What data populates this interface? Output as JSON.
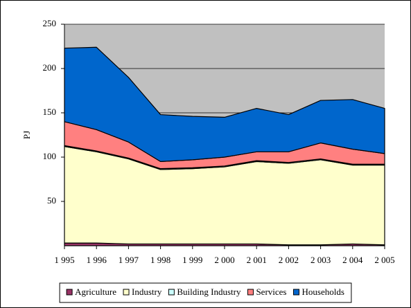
{
  "chart_data": {
    "type": "stacked_area",
    "y_label": "PJ",
    "categories": [
      "1 995",
      "1 996",
      "1 997",
      "1 998",
      "1 999",
      "2 000",
      "2 001",
      "2 002",
      "2 003",
      "2 004",
      "2 005"
    ],
    "series": [
      {
        "name": "Agriculture",
        "color": "#993366",
        "values": [
          3,
          3,
          2,
          2,
          2,
          2,
          2,
          1,
          1,
          2,
          1
        ]
      },
      {
        "name": "Industry",
        "color": "#ffffcc",
        "values": [
          109,
          103,
          96,
          84,
          85,
          87,
          93,
          92,
          96,
          89,
          90
        ]
      },
      {
        "name": "Building Industry",
        "color": "#ccffff",
        "values": [
          1,
          1,
          1,
          1,
          1,
          1,
          1,
          1,
          1,
          1,
          1
        ]
      },
      {
        "name": "Services",
        "color": "#ff8080",
        "values": [
          27,
          24,
          18,
          8,
          9,
          10,
          10,
          12,
          18,
          17,
          12
        ]
      },
      {
        "name": "Households",
        "color": "#0066cc",
        "values": [
          83,
          93,
          73,
          53,
          49,
          45,
          49,
          42,
          48,
          56,
          51
        ]
      }
    ],
    "ylim": [
      0,
      250
    ],
    "yticks": [
      50,
      100,
      150,
      200,
      250
    ],
    "grid": true,
    "plot_background": "#c0c0c0",
    "legend": "bottom"
  }
}
